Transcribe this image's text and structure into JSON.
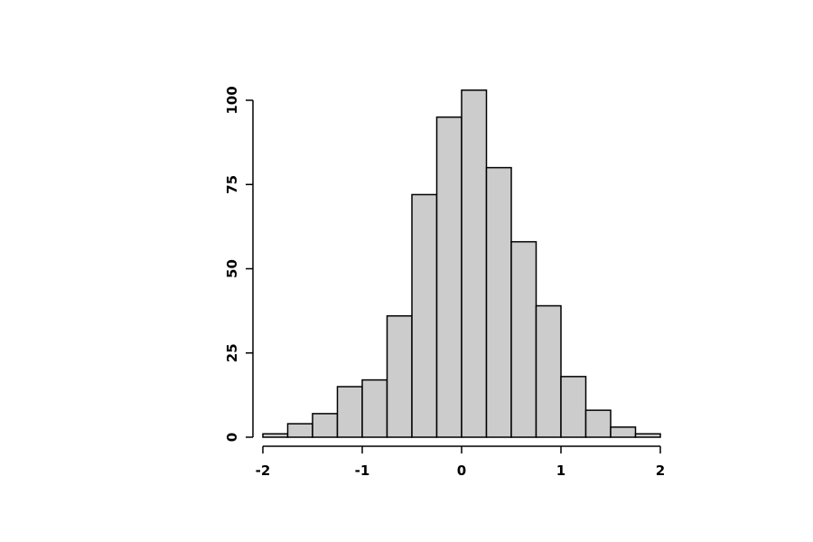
{
  "chart_data": {
    "type": "histogram",
    "bins": [
      -2,
      -1.75,
      -1.5,
      -1.25,
      -1,
      -0.75,
      -0.5,
      -0.25,
      0,
      0.25,
      0.5,
      0.75,
      1,
      1.25,
      1.5,
      1.75,
      2
    ],
    "values": [
      1,
      4,
      7,
      15,
      17,
      36,
      72,
      95,
      103,
      80,
      58,
      39,
      18,
      8,
      3,
      1
    ],
    "color": "#cccccc",
    "xlim": [
      -2,
      2
    ],
    "xticks": [
      -2,
      -1,
      0,
      1,
      2
    ],
    "ylim": [
      0,
      100
    ],
    "yticks": [
      0,
      25,
      50,
      75,
      100
    ]
  }
}
